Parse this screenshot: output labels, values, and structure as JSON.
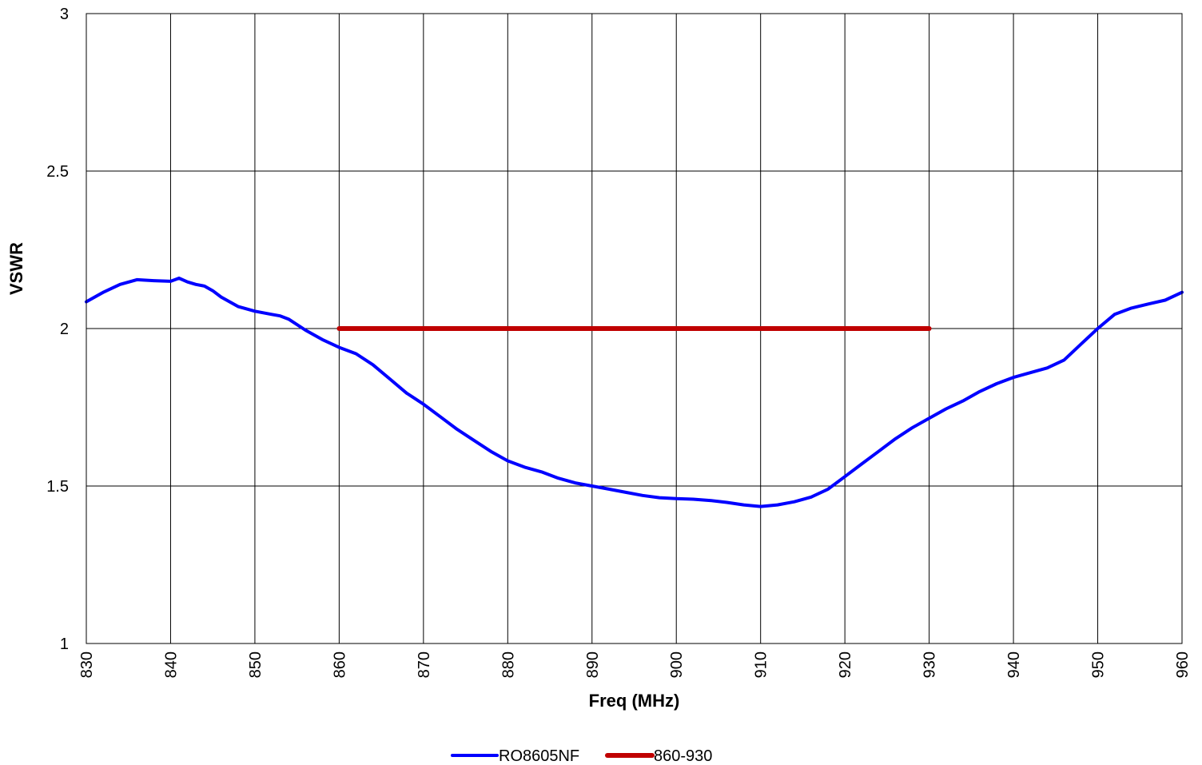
{
  "chart_data": {
    "type": "line",
    "title": "",
    "xlabel": "Freq (MHz)",
    "ylabel": "VSWR",
    "xlim": [
      830,
      960
    ],
    "ylim": [
      1,
      3
    ],
    "xticks": [
      830,
      840,
      850,
      860,
      870,
      880,
      890,
      900,
      910,
      920,
      930,
      940,
      950,
      960
    ],
    "yticks": [
      1,
      1.5,
      2,
      2.5,
      3
    ],
    "grid": true,
    "legend_position": "bottom",
    "series": [
      {
        "name": "RO8605NF",
        "color": "#0000ff",
        "x": [
          830,
          832,
          834,
          836,
          838,
          840,
          841,
          842,
          843,
          844,
          845,
          846,
          848,
          850,
          852,
          853,
          854,
          856,
          858,
          860,
          862,
          864,
          866,
          868,
          870,
          872,
          874,
          876,
          878,
          880,
          882,
          884,
          886,
          888,
          890,
          892,
          894,
          896,
          898,
          900,
          902,
          904,
          906,
          908,
          910,
          912,
          914,
          916,
          918,
          920,
          922,
          924,
          926,
          928,
          930,
          932,
          934,
          936,
          938,
          940,
          942,
          944,
          946,
          948,
          950,
          952,
          954,
          956,
          958,
          960
        ],
        "y": [
          2.085,
          2.115,
          2.14,
          2.155,
          2.152,
          2.15,
          2.16,
          2.148,
          2.14,
          2.135,
          2.12,
          2.1,
          2.07,
          2.055,
          2.045,
          2.04,
          2.03,
          1.995,
          1.965,
          1.94,
          1.92,
          1.885,
          1.84,
          1.795,
          1.76,
          1.72,
          1.68,
          1.645,
          1.61,
          1.58,
          1.56,
          1.545,
          1.525,
          1.51,
          1.5,
          1.49,
          1.48,
          1.47,
          1.463,
          1.46,
          1.458,
          1.454,
          1.448,
          1.44,
          1.435,
          1.44,
          1.45,
          1.465,
          1.49,
          1.53,
          1.57,
          1.61,
          1.65,
          1.685,
          1.715,
          1.745,
          1.77,
          1.8,
          1.825,
          1.845,
          1.86,
          1.875,
          1.9,
          1.95,
          2.0,
          2.045,
          2.065,
          2.078,
          2.09,
          2.115
        ]
      },
      {
        "name": "860-930",
        "color": "#c00000",
        "x": [
          860,
          930
        ],
        "y": [
          2,
          2
        ]
      }
    ]
  }
}
